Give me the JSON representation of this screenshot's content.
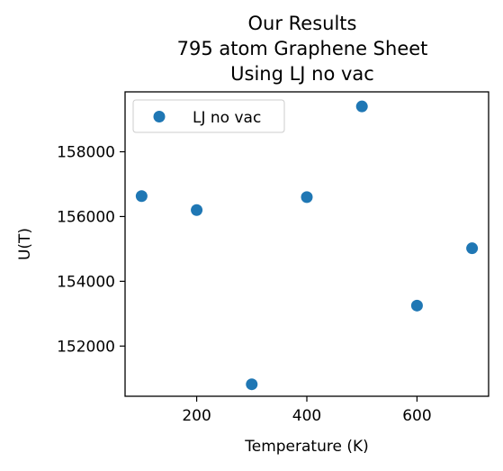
{
  "chart_data": {
    "type": "scatter",
    "title_lines": [
      "Our Results",
      "795 atom Graphene Sheet",
      "Using LJ no vac"
    ],
    "xlabel": "Temperature (K)",
    "ylabel": "U(T)",
    "xlim": [
      70,
      730
    ],
    "ylim": [
      150450,
      159850
    ],
    "xticks": [
      200,
      400,
      600
    ],
    "yticks": [
      152000,
      154000,
      156000,
      158000
    ],
    "grid": false,
    "legend_position": "upper-left",
    "series": [
      {
        "name": "LJ no vac",
        "color": "#1f77b4",
        "x": [
          100,
          200,
          300,
          400,
          500,
          600,
          700
        ],
        "y": [
          156630,
          156200,
          150820,
          156600,
          159400,
          153250,
          155020
        ]
      }
    ]
  }
}
